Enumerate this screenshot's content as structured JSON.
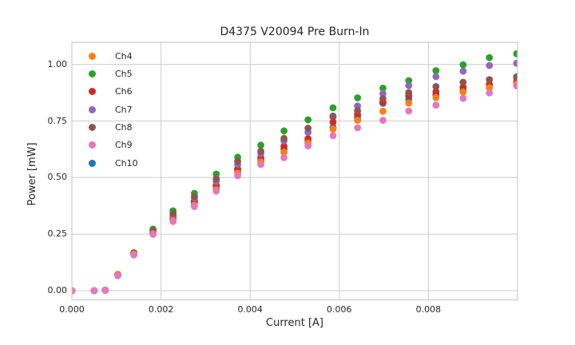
{
  "chart_data": {
    "type": "scatter",
    "title": "D4375 V20094 Pre Burn-In",
    "xlabel": "Current [A]",
    "ylabel": "Power [mW]",
    "xlim": [
      0,
      0.01
    ],
    "ylim": [
      -0.0406,
      1.0974
    ],
    "grid": true,
    "legend_position": "upper-left",
    "background_color": "#ffffff",
    "grid_color": "#cccccc",
    "axis_color": "#cccccc",
    "text_color": "#262626",
    "xticks": [
      0,
      0.002,
      0.004,
      0.006,
      0.008
    ],
    "xtick_labels": [
      "0.000",
      "0.002",
      "0.004",
      "0.006",
      "0.008"
    ],
    "yticks": [
      0,
      0.25,
      0.5,
      0.75,
      1.0
    ],
    "ytick_labels": [
      "0.00",
      "0.25",
      "0.50",
      "0.75",
      "1.00"
    ],
    "x": [
      0.0,
      0.0005,
      0.00075,
      0.00103,
      0.00139,
      0.00182,
      0.00227,
      0.00275,
      0.00324,
      0.00372,
      0.00424,
      0.00476,
      0.0053,
      0.00586,
      0.00641,
      0.00698,
      0.00756,
      0.00817,
      0.00878,
      0.00937,
      0.00998
    ],
    "series": [
      {
        "name": "Ch4",
        "color": "#ff7f0e",
        "values": [
          0,
          0,
          0.002,
          0.07,
          0.162,
          0.252,
          0.311,
          0.378,
          0.447,
          0.519,
          0.569,
          0.612,
          0.652,
          0.714,
          0.753,
          0.793,
          0.829,
          0.853,
          0.878,
          0.897,
          0.912
        ]
      },
      {
        "name": "Ch5",
        "color": "#2ca02c",
        "values": [
          0,
          0,
          0.002,
          0.072,
          0.168,
          0.272,
          0.353,
          0.43,
          0.515,
          0.59,
          0.643,
          0.706,
          0.755,
          0.808,
          0.852,
          0.895,
          0.928,
          0.972,
          0.998,
          1.03,
          1.047
        ]
      },
      {
        "name": "Ch6",
        "color": "#d62728",
        "values": [
          0,
          0,
          0.002,
          0.07,
          0.164,
          0.258,
          0.322,
          0.398,
          0.466,
          0.538,
          0.588,
          0.638,
          0.672,
          0.745,
          0.778,
          0.833,
          0.862,
          0.879,
          0.898,
          0.912,
          0.922
        ]
      },
      {
        "name": "Ch7",
        "color": "#9467bd",
        "values": [
          0,
          0,
          0.002,
          0.07,
          0.166,
          0.262,
          0.333,
          0.41,
          0.483,
          0.558,
          0.605,
          0.662,
          0.7,
          0.772,
          0.816,
          0.87,
          0.906,
          0.946,
          0.97,
          0.995,
          1.005
        ]
      },
      {
        "name": "Ch8",
        "color": "#8c564b",
        "values": [
          0,
          0,
          0.002,
          0.071,
          0.166,
          0.266,
          0.34,
          0.415,
          0.495,
          0.572,
          0.616,
          0.673,
          0.718,
          0.768,
          0.795,
          0.848,
          0.875,
          0.902,
          0.921,
          0.933,
          0.94
        ]
      },
      {
        "name": "Ch9",
        "color": "#e377c2",
        "values": [
          0,
          0,
          0.001,
          0.066,
          0.158,
          0.249,
          0.306,
          0.372,
          0.44,
          0.508,
          0.558,
          0.588,
          0.64,
          0.685,
          0.72,
          0.753,
          0.794,
          0.82,
          0.85,
          0.874,
          0.905
        ]
      },
      {
        "name": "Ch10",
        "color": "#1f77b4",
        "values": [
          0,
          0,
          0.002,
          0.069,
          0.165,
          0.255,
          0.316,
          0.39,
          0.458,
          0.528,
          0.578,
          0.625,
          0.662,
          0.722,
          0.766,
          0.828,
          0.846,
          0.866,
          0.886,
          0.902,
          0.945
        ]
      }
    ],
    "render_order": [
      "Ch10",
      "Ch5",
      "Ch6",
      "Ch7",
      "Ch8",
      "Ch4",
      "Ch9"
    ]
  }
}
